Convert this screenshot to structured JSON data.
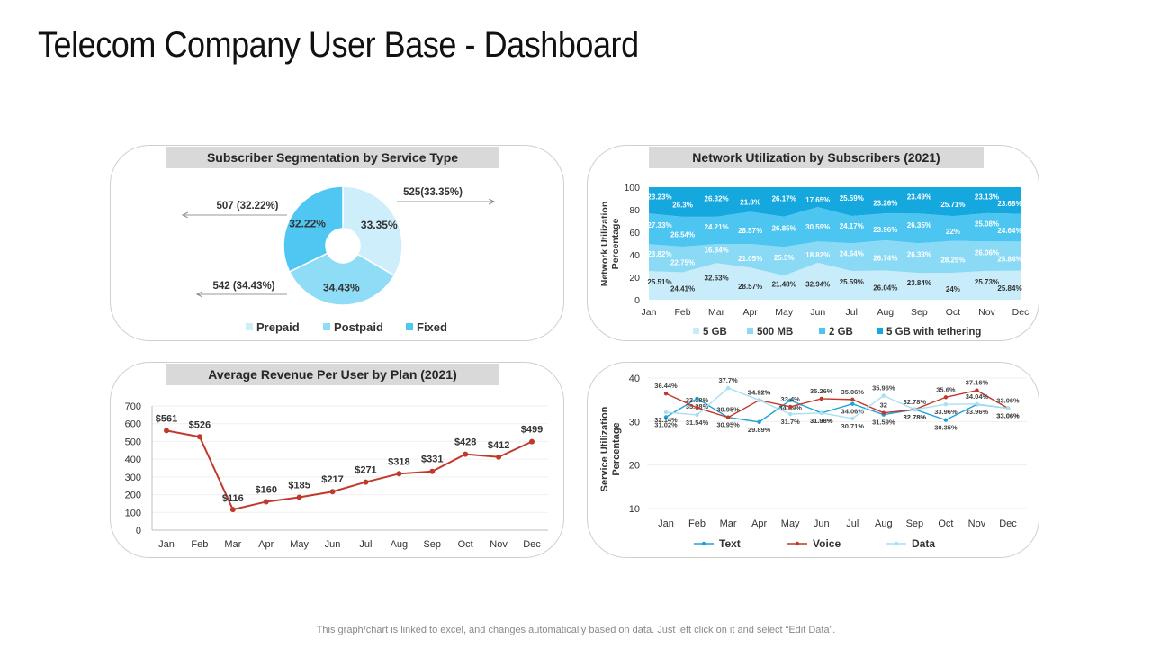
{
  "page": {
    "title": "Telecom Company User Base - Dashboard",
    "footer": "This graph/chart is linked to excel, and changes automatically  based on data. Just left click on it and select “Edit Data”."
  },
  "colors": {
    "prepaid": "#cdeefa",
    "postpaid": "#8fdcf6",
    "fixed": "#4fc7f2",
    "s5gb": "#c8ecf9",
    "s500": "#8adaf5",
    "s2gb": "#4cc6f0",
    "stether": "#14a8df",
    "arpu": "#c0392b",
    "text_line": "#1fa3d6",
    "voice_line": "#c0392b",
    "data_line": "#a9dff2"
  },
  "chart_data": [
    {
      "id": "segmentation",
      "type": "pie",
      "title": "Subscriber Segmentation by Service Type",
      "categories": [
        "Prepaid",
        "Postpaid",
        "Fixed"
      ],
      "values": [
        525,
        542,
        507
      ],
      "percent_labels": [
        "33.35%",
        "34.43%",
        "32.22%"
      ],
      "callouts": [
        "525(33.35%)",
        "542 (34.43%)",
        "507 (32.22%)"
      ],
      "legend": [
        "Prepaid",
        "Postpaid",
        "Fixed"
      ]
    },
    {
      "id": "network",
      "type": "area",
      "stacked": true,
      "title": "Network Utilization by Subscribers  (2021)",
      "ylabel": "Network Utilization Percentage",
      "ylim": [
        0,
        100
      ],
      "yticks": [
        0,
        20,
        40,
        60,
        80,
        100
      ],
      "categories": [
        "Jan",
        "Feb",
        "Mar",
        "Apr",
        "May",
        "Jun",
        "Jul",
        "Aug",
        "Sep",
        "Oct",
        "Nov",
        "Dec"
      ],
      "series": [
        {
          "name": "5 GB",
          "values": [
            25.51,
            24.41,
            32.63,
            28.57,
            21.48,
            32.94,
            25.59,
            26.04,
            23.84,
            24,
            25.73,
            25.84
          ],
          "labels": [
            "25.51%",
            "24.41%",
            "32.63%",
            "28.57%",
            "21.48%",
            "32.94%",
            "25.59%",
            "26.04%",
            "23.84%",
            "24%",
            "25.73%",
            "25.84%"
          ]
        },
        {
          "name": "500 MB",
          "values": [
            23.82,
            22.75,
            16.84,
            21.05,
            25.5,
            18.82,
            24.64,
            26.74,
            26.33,
            28.29,
            26.06,
            25.84
          ],
          "labels": [
            "23.82%",
            "22.75%",
            "16.84%",
            "21.05%",
            "25.5%",
            "18.82%",
            "24.64%",
            "26.74%",
            "26.33%",
            "28.29%",
            "26.06%",
            "25.84%"
          ]
        },
        {
          "name": "2 GB",
          "values": [
            27.33,
            26.54,
            24.21,
            28.57,
            26.85,
            30.59,
            24.17,
            23.96,
            26.35,
            22,
            25.08,
            24.64
          ],
          "labels": [
            "27.33%",
            "26.54%",
            "24.21%",
            "28.57%",
            "26.85%",
            "30.59%",
            "24.17%",
            "23.96%",
            "26.35%",
            "22%",
            "25.08%",
            "24.64%"
          ]
        },
        {
          "name": "5 GB with tethering",
          "values": [
            23.23,
            26.3,
            26.32,
            21.8,
            26.17,
            17.65,
            25.59,
            23.26,
            23.49,
            25.71,
            23.13,
            23.68
          ],
          "labels": [
            "23.23%",
            "26.3%",
            "26.32%",
            "21.8%",
            "26.17%",
            "17.65%",
            "25.59%",
            "23.26%",
            "23.49%",
            "25.71%",
            "23.13%",
            "23.68%"
          ]
        }
      ],
      "legend": [
        "5 GB",
        "500 MB",
        "2 GB",
        "5 GB with tethering"
      ]
    },
    {
      "id": "arpu",
      "type": "line",
      "title": "Average Revenue Per User by Plan (2021)",
      "ylim": [
        0,
        700
      ],
      "yticks": [
        0,
        100,
        200,
        300,
        400,
        500,
        600,
        700
      ],
      "categories": [
        "Jan",
        "Feb",
        "Mar",
        "Apr",
        "May",
        "Jun",
        "Jul",
        "Aug",
        "Sep",
        "Oct",
        "Nov",
        "Dec"
      ],
      "values": [
        561,
        526,
        116,
        160,
        185,
        217,
        271,
        318,
        331,
        428,
        412,
        499
      ],
      "labels": [
        "$561",
        "$526",
        "$116",
        "$160",
        "$185",
        "$217",
        "$271",
        "$318",
        "$331",
        "$428",
        "$412",
        "$499"
      ]
    },
    {
      "id": "service",
      "type": "line",
      "title": "",
      "ylabel": "Service Utilization Percentage",
      "ylim": [
        10,
        40
      ],
      "yticks": [
        10,
        20,
        30,
        40
      ],
      "categories": [
        "Jan",
        "Feb",
        "Mar",
        "Apr",
        "May",
        "Jun",
        "Jul",
        "Aug",
        "Sep",
        "Oct",
        "Nov",
        "Dec"
      ],
      "series": [
        {
          "name": "Text",
          "values": [
            31.02,
            35.28,
            30.95,
            29.89,
            34.89,
            31.98,
            34.06,
            31.59,
            32.78,
            30.35,
            33.96,
            33.06
          ],
          "labels": [
            "31.02%",
            "35.28%",
            "30.95%",
            "29.89%",
            "34.89%",
            "31.98%",
            "34.06%",
            "31.59%",
            "32.78%",
            "30.35%",
            "33.96%",
            "33.06%"
          ]
        },
        {
          "name": "Voice",
          "values": [
            36.44,
            33.18,
            30.95,
            34.92,
            33.4,
            35.26,
            35.06,
            32,
            32.78,
            35.6,
            37.16,
            33.06
          ],
          "labels": [
            "36.44%",
            "33.18%",
            "30.95%",
            "34.92%",
            "33.4%",
            "35.26%",
            "35.06%",
            "32",
            "32.78%",
            "35.6%",
            "37.16%",
            "33.06%"
          ]
        },
        {
          "name": "Data",
          "values": [
            32.14,
            31.54,
            37.7,
            34.92,
            31.7,
            31.96,
            30.71,
            35.96,
            32.78,
            33.96,
            34.04,
            33.06
          ],
          "labels": [
            "32.14%",
            "31.54%",
            "37.7%",
            "34.92%",
            "31.7%",
            "31.96%",
            "30.71%",
            "35.96%",
            "32.78%",
            "33.96%",
            "34.04%",
            "33.06%"
          ]
        }
      ],
      "legend": [
        "Text",
        "Voice",
        "Data"
      ]
    }
  ]
}
